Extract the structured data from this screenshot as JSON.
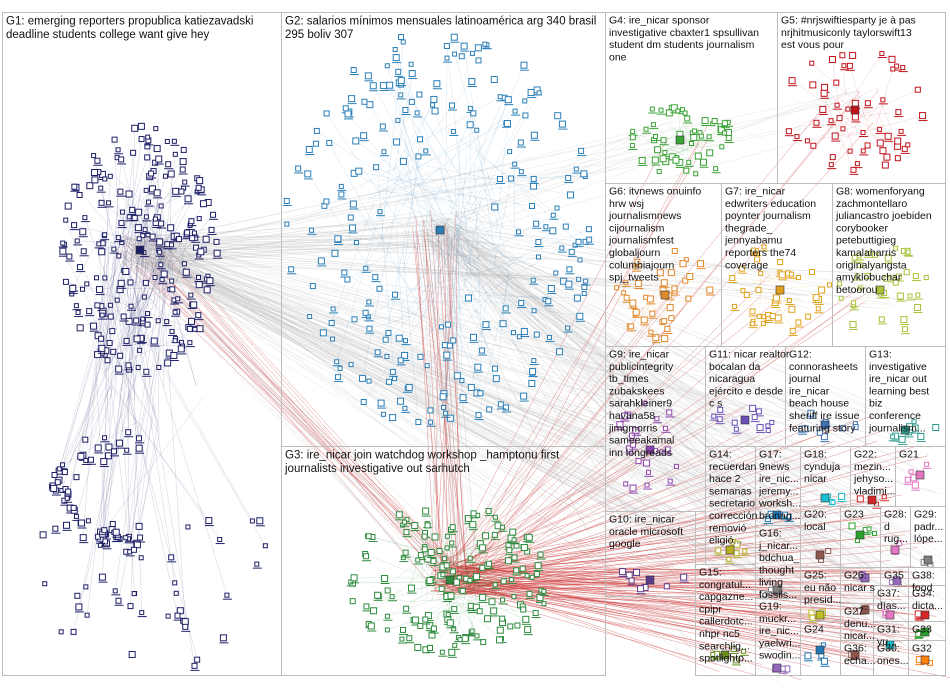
{
  "groups": [
    {
      "id": "G1",
      "lines": [
        "G1: emerging reporters propublica katiezavadski",
        "deadline students college want give hey"
      ],
      "color": "#1d1f66"
    },
    {
      "id": "G2",
      "lines": [
        "G2: salarios mínimos mensuales latinoamérica arg 340 brasil",
        "295 boliv 307"
      ],
      "color": "#2b7fb7"
    },
    {
      "id": "G3",
      "lines": [
        "G3: ire_nicar join watchdog workshop _hamptonu first",
        "journalists investigative out sarhutch"
      ],
      "color": "#2e8b3e"
    },
    {
      "id": "G4",
      "lines": [
        "G4: ire_nicar sponsor",
        "investigative cbaxter1 spsullivan",
        "student dm students journalism",
        "one"
      ],
      "color": "#3aa335"
    },
    {
      "id": "G5",
      "lines": [
        "G5: #nrjswiftiesparty je à pas",
        "nrjhitmusiconly taylorswift13",
        "est vous pour"
      ],
      "color": "#c0141c"
    },
    {
      "id": "G6",
      "lines": [
        "G6: itvnews onuinfo",
        "hrw wsj",
        "journalismnews",
        "cijournalism",
        "journalismfest",
        "globaljourn",
        "columbiajourn",
        "spj_tweets"
      ],
      "color": "#e08a2c"
    },
    {
      "id": "G7",
      "lines": [
        "G7: ire_nicar",
        "edwriters education",
        "poynter journalism",
        "thegrade_",
        "jennyabamu",
        "reporters the74",
        "coverage"
      ],
      "color": "#e0a21e"
    },
    {
      "id": "G8",
      "lines": [
        "G8: womenforyang",
        "zachmontellaro",
        "juliancastro joebiden",
        "corybooker",
        "petebuttigieg",
        "kamalaharris",
        "originalyangsta",
        "amyklobuchar",
        "betoorou"
      ],
      "color": "#a8c23a"
    },
    {
      "id": "G9",
      "lines": [
        "G9: ire_nicar",
        "publicintegrity",
        "tb_times",
        "zubakskees",
        "sarahkleiner9",
        "havana58",
        "jimgmorris",
        "sameeakamal",
        "inn longreads"
      ],
      "color": "#8e44ad"
    },
    {
      "id": "G10",
      "lines": [
        "G10: ire_nicar",
        "oracle microsoft",
        "google"
      ],
      "color": "#5d3a8a"
    },
    {
      "id": "G11",
      "lines": [
        "G11: nicar realtor",
        "bocalan da",
        "nicaragua",
        "ejército e desde",
        "c s"
      ],
      "color": "#6a4fb5"
    },
    {
      "id": "G12",
      "lines": [
        "G12:",
        "connorasheets",
        "journal",
        "ire_nicar",
        "beach house",
        "sheriff ire issue",
        "featuring story"
      ],
      "color": "#3e6fb0"
    },
    {
      "id": "G13",
      "lines": [
        "G13:",
        "investigative",
        "ire_nicar out",
        "learning best",
        "biz",
        "conference",
        "journalism..."
      ],
      "color": "#2f9e8f"
    },
    {
      "id": "G14",
      "lines": [
        "G14:",
        "recuerdan",
        "hace 2",
        "semanas",
        "secretario",
        "corrección",
        "removió",
        "eligió..."
      ],
      "color": "#b8b020"
    },
    {
      "id": "G15",
      "lines": [
        "G15:",
        "congratul...",
        "capgazne...",
        "cpipr",
        "callerdotc...",
        "nhpr nc5",
        "searchlig...",
        "spotlightp..."
      ],
      "color": "#6b8e23"
    },
    {
      "id": "G16",
      "lines": [
        "G16:",
        "j_nicar...",
        "bdchua_",
        "thought",
        "living",
        "fossils..."
      ],
      "color": "#7f7f7f"
    },
    {
      "id": "G17",
      "lines": [
        "G17:",
        "9news",
        "ire_nic...",
        "jeremy...",
        "worksh...",
        "bronag..."
      ],
      "color": "#1f77b4"
    },
    {
      "id": "G18",
      "lines": [
        "G18:",
        "cynduja",
        "nicar"
      ],
      "color": "#17becf"
    },
    {
      "id": "G19",
      "lines": [
        "G19:",
        "muckr...",
        "ire_nic...",
        "yaelwri...",
        "swodin..."
      ],
      "color": "#9467bd"
    },
    {
      "id": "G20",
      "lines": [
        "G20:",
        "local"
      ],
      "color": "#8c564b"
    },
    {
      "id": "G21",
      "lines": [
        "G21"
      ],
      "color": "#e377c2"
    },
    {
      "id": "G22",
      "lines": [
        "G22:",
        "mezin...",
        "jehyso...",
        "vladimi..."
      ],
      "color": "#d62728"
    },
    {
      "id": "G23",
      "lines": [
        "G23"
      ],
      "color": "#2ca02c"
    },
    {
      "id": "G24",
      "lines": [
        "G24"
      ],
      "color": "#1f77b4"
    },
    {
      "id": "G25",
      "lines": [
        "G25:",
        "eu não",
        "presid..."
      ],
      "color": "#bcbd22"
    },
    {
      "id": "G26",
      "lines": [
        "G26:",
        "nicar s"
      ],
      "color": "#9467bd"
    },
    {
      "id": "G27",
      "lines": [
        "G27:",
        "denu...",
        "nicar..."
      ],
      "color": "#8c564b"
    },
    {
      "id": "G28",
      "lines": [
        "G28:",
        "d",
        "rug..."
      ],
      "color": "#e377c2"
    },
    {
      "id": "G29",
      "lines": [
        "G29:",
        "padr...",
        "lópe..."
      ],
      "color": "#7f7f7f"
    },
    {
      "id": "G30",
      "lines": [
        "G30:",
        "ones..."
      ],
      "color": "#17becf"
    },
    {
      "id": "G31",
      "lines": [
        "G31:",
        "yu..."
      ],
      "color": "#1f77b4"
    },
    {
      "id": "G32",
      "lines": [
        "G32"
      ],
      "color": "#ff7f0e"
    },
    {
      "id": "G33",
      "lines": [
        "G33"
      ],
      "color": "#2ca02c"
    },
    {
      "id": "G34",
      "lines": [
        "G34:",
        "dicta..."
      ],
      "color": "#d62728"
    },
    {
      "id": "G35",
      "lines": [
        "G35"
      ],
      "color": "#9467bd"
    },
    {
      "id": "G36",
      "lines": [
        "G36:",
        "echa..."
      ],
      "color": "#8c564b"
    },
    {
      "id": "G37",
      "lines": [
        "G37:",
        "días..."
      ],
      "color": "#e377c2"
    },
    {
      "id": "G38",
      "lines": [
        "G38:",
        "food"
      ],
      "color": "#7f7f7f"
    }
  ]
}
